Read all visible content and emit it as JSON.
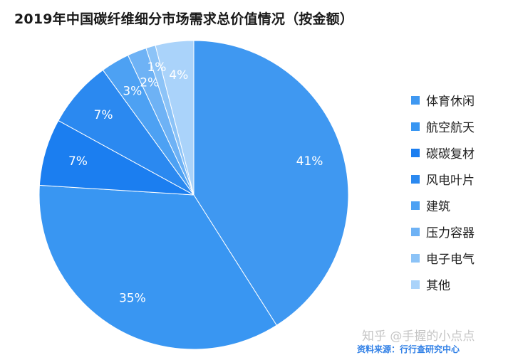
{
  "chart_data": {
    "type": "pie",
    "title": "2019年中国碳纤维细分市场需求总价值情况（按金额）",
    "slices": [
      {
        "name": "体育休闲",
        "value": 41,
        "label": "41%",
        "color": "#3f98f1"
      },
      {
        "name": "航空航天",
        "value": 35,
        "label": "35%",
        "color": "#3996f2"
      },
      {
        "name": "碳碳复材",
        "value": 7,
        "label": "7%",
        "color": "#1b7ef0"
      },
      {
        "name": "风电叶片",
        "value": 7,
        "label": "7%",
        "color": "#2b89f0"
      },
      {
        "name": "建筑",
        "value": 3,
        "label": "3%",
        "color": "#4da1f3"
      },
      {
        "name": "压力容器",
        "value": 2,
        "label": "2%",
        "color": "#6eb2f5"
      },
      {
        "name": "电子电气",
        "value": 1,
        "label": "1%",
        "color": "#8cc3f7"
      },
      {
        "name": "其他",
        "value": 4,
        "label": "4%",
        "color": "#aad3fa"
      }
    ],
    "legend_position": "right"
  },
  "source": "资料来源：行行查研究中心",
  "watermark": "知乎 @手握的小点点"
}
